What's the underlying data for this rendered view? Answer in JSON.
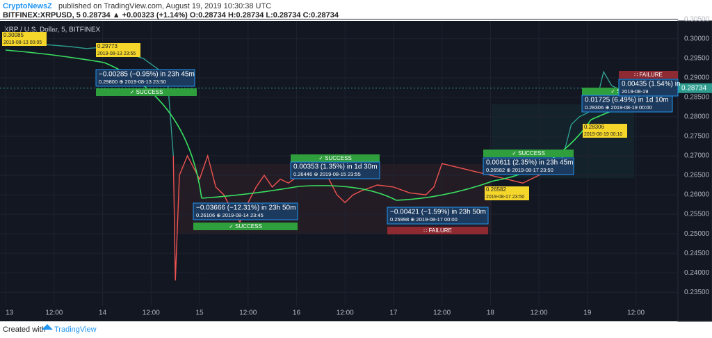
{
  "header": {
    "publisher": "CryptoNewsZ",
    "published": "published on TradingView.com, August 19, 2019 10:30:38 UTC",
    "quote": "BITFINEX:XRPUSD, 5  0.28734 ▲ +0.00323 (+1.14%) O:0.28734 H:0.28734 L:0.28734 C:0.28734"
  },
  "footer": {
    "created": "Created with",
    "brand": "TradingView"
  },
  "chart_data": {
    "type": "line",
    "title": "XRP / U.S. Dollar, 5, BITFINEX",
    "series": [
      {
        "color": "#2e9c8f",
        "x": [
          0,
          4,
          10,
          16,
          20,
          24,
          28,
          30,
          34,
          38,
          40,
          41.5
        ],
        "values": [
          0.3008,
          0.3,
          0.2985,
          0.298,
          0.2975,
          0.2978,
          0.2968,
          0.2962,
          0.295,
          0.292,
          0.2905,
          0.27
        ]
      },
      {
        "color": "#ef5350",
        "x": [
          41.5,
          42,
          43,
          45,
          47,
          48,
          50,
          52,
          54,
          56,
          58,
          60,
          62,
          64,
          66,
          68,
          70,
          72,
          74,
          76,
          78,
          80,
          82,
          84,
          86,
          88,
          92,
          96,
          100,
          104,
          106,
          108,
          112,
          116,
          120,
          124,
          128,
          132,
          134,
          136
        ],
        "values": [
          0.27,
          0.238,
          0.265,
          0.27,
          0.266,
          0.264,
          0.27,
          0.262,
          0.26,
          0.256,
          0.253,
          0.258,
          0.262,
          0.265,
          0.262,
          0.264,
          0.263,
          0.2645,
          0.266,
          0.265,
          0.267,
          0.264,
          0.26,
          0.258,
          0.26,
          0.261,
          0.2625,
          0.262,
          0.2605,
          0.26,
          0.262,
          0.268,
          0.267,
          0.266,
          0.265,
          0.264,
          0.263,
          0.265,
          0.266,
          0.267
        ]
      },
      {
        "color": "#2e9c8f",
        "x": [
          136,
          138,
          140,
          142,
          144,
          146,
          148,
          150,
          152,
          154,
          156,
          158,
          160,
          162
        ],
        "values": [
          0.267,
          0.27,
          0.278,
          0.28,
          0.281,
          0.283,
          0.2915,
          0.288,
          0.287,
          0.286,
          0.284,
          0.285,
          0.287,
          0.2873
        ]
      }
    ],
    "last_price": 0.28734,
    "xlim": [
      -1.4,
      166.4
    ],
    "ylim": [
      0.2288,
      0.3046
    ],
    "xticks": [
      {
        "value": 0,
        "label": "13"
      },
      {
        "value": 12,
        "label": "12:00"
      },
      {
        "value": 24,
        "label": "14"
      },
      {
        "value": 36,
        "label": "12:00"
      },
      {
        "value": 48,
        "label": "15"
      },
      {
        "value": 60,
        "label": "12:00"
      },
      {
        "value": 72,
        "label": "16"
      },
      {
        "value": 84,
        "label": "12:00"
      },
      {
        "value": 96,
        "label": "17"
      },
      {
        "value": 108,
        "label": "12:00"
      },
      {
        "value": 120,
        "label": "18"
      },
      {
        "value": 132,
        "label": "12:00"
      },
      {
        "value": 144,
        "label": "19"
      },
      {
        "value": 156,
        "label": "12:00"
      }
    ],
    "yticks": [
      {
        "value": 0.305,
        "label": "0.30500"
      },
      {
        "value": 0.3,
        "label": "0.30000"
      },
      {
        "value": 0.295,
        "label": "0.29500"
      },
      {
        "value": 0.29,
        "label": "0.29000"
      },
      {
        "value": 0.285,
        "label": "0.28500"
      },
      {
        "value": 0.28,
        "label": "0.28000"
      },
      {
        "value": 0.275,
        "label": "0.27500"
      },
      {
        "value": 0.27,
        "label": "0.27000"
      },
      {
        "value": 0.265,
        "label": "0.26500"
      },
      {
        "value": 0.26,
        "label": "0.26000"
      },
      {
        "value": 0.255,
        "label": "0.25500"
      },
      {
        "value": 0.25,
        "label": "0.25000"
      },
      {
        "value": 0.245,
        "label": "0.24500"
      },
      {
        "value": 0.24,
        "label": "0.24000"
      },
      {
        "value": 0.235,
        "label": "0.23500"
      }
    ],
    "grid": true,
    "price_labels": [
      [
        "0.30085",
        "2019-08-13 00:05"
      ],
      [
        "0.29773",
        "2019-08-13 23:55"
      ],
      [
        "0.26582",
        "2019-08-17 23:50"
      ],
      [
        "0.28306",
        "2019-08-19 00:10"
      ]
    ],
    "projections": [
      [
        "−0.00285 (−0.95%) in 23h 45m",
        "0.29800 ⊕ 2019-08-13 23:50"
      ],
      [
        "−0.03666 (−12.31%) in 23h 50m",
        "0.26106 ⊕ 2019-08-14 23:45"
      ],
      [
        "0.00353 (1.35%) in 1d 30m",
        "0.26446 ⊕ 2019-08-15 23:55"
      ],
      [
        "−0.00421 (−1.59%) in 23h 50m",
        "0.25998 ⊕ 2019-08-17 00:00"
      ],
      [
        "0.00611 (2.35%) in 23h 45m",
        "0.26582 ⊕ 2019-08-17 23:50"
      ],
      [
        "0.01725 (6.49%) in 1d 10m",
        "0.28306 ⊕ 2019-08-19 00:00"
      ],
      [
        "0.00435 (1.54%) in",
        "2019-08-19"
      ]
    ],
    "badges": [
      "✓ SUCCESS",
      "✓ SUCCESS",
      "✓ SUCCESS",
      "∷ FAILURE",
      "✓ SUCCESS",
      "✓ SUCCESS",
      "∷ FAILURE"
    ]
  }
}
